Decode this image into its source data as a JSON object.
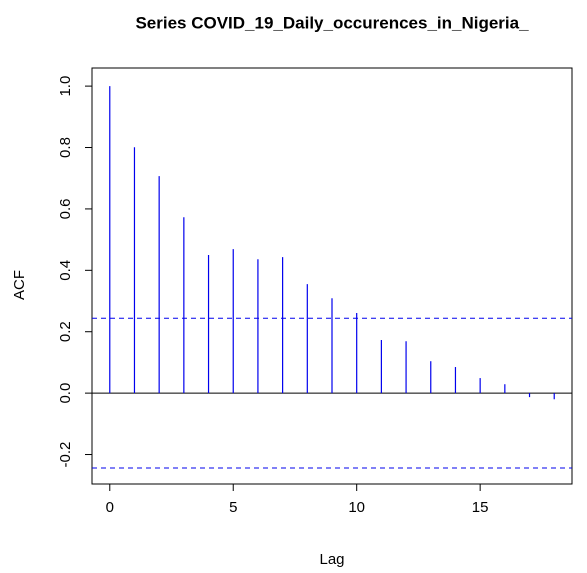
{
  "chart_data": {
    "type": "acf",
    "title": "Series  COVID_19_Daily_occurences_in_Nigeria_",
    "x_label": "Lag",
    "y_label": "ACF",
    "x": [
      0,
      1,
      2,
      3,
      4,
      5,
      6,
      7,
      8,
      9,
      10,
      11,
      12,
      13,
      14,
      15,
      16,
      17,
      18
    ],
    "values": [
      1.0,
      0.801,
      0.707,
      0.573,
      0.45,
      0.469,
      0.436,
      0.443,
      0.355,
      0.309,
      0.261,
      0.173,
      0.169,
      0.104,
      0.085,
      0.049,
      0.029,
      -0.013,
      -0.02
    ],
    "color": "#0000ee",
    "confidence_bounds": [
      0.244,
      -0.244
    ],
    "xlim": [
      -0.72,
      18.72
    ],
    "ylim": [
      -0.296,
      1.059
    ],
    "xticks": [
      0,
      5,
      10,
      15
    ],
    "yticks": [
      -0.2,
      {
        "value": 0,
        "label": "0.0"
      },
      0.2,
      0.4,
      0.6,
      0.8,
      {
        "value": 1,
        "label": "1.0"
      }
    ]
  }
}
